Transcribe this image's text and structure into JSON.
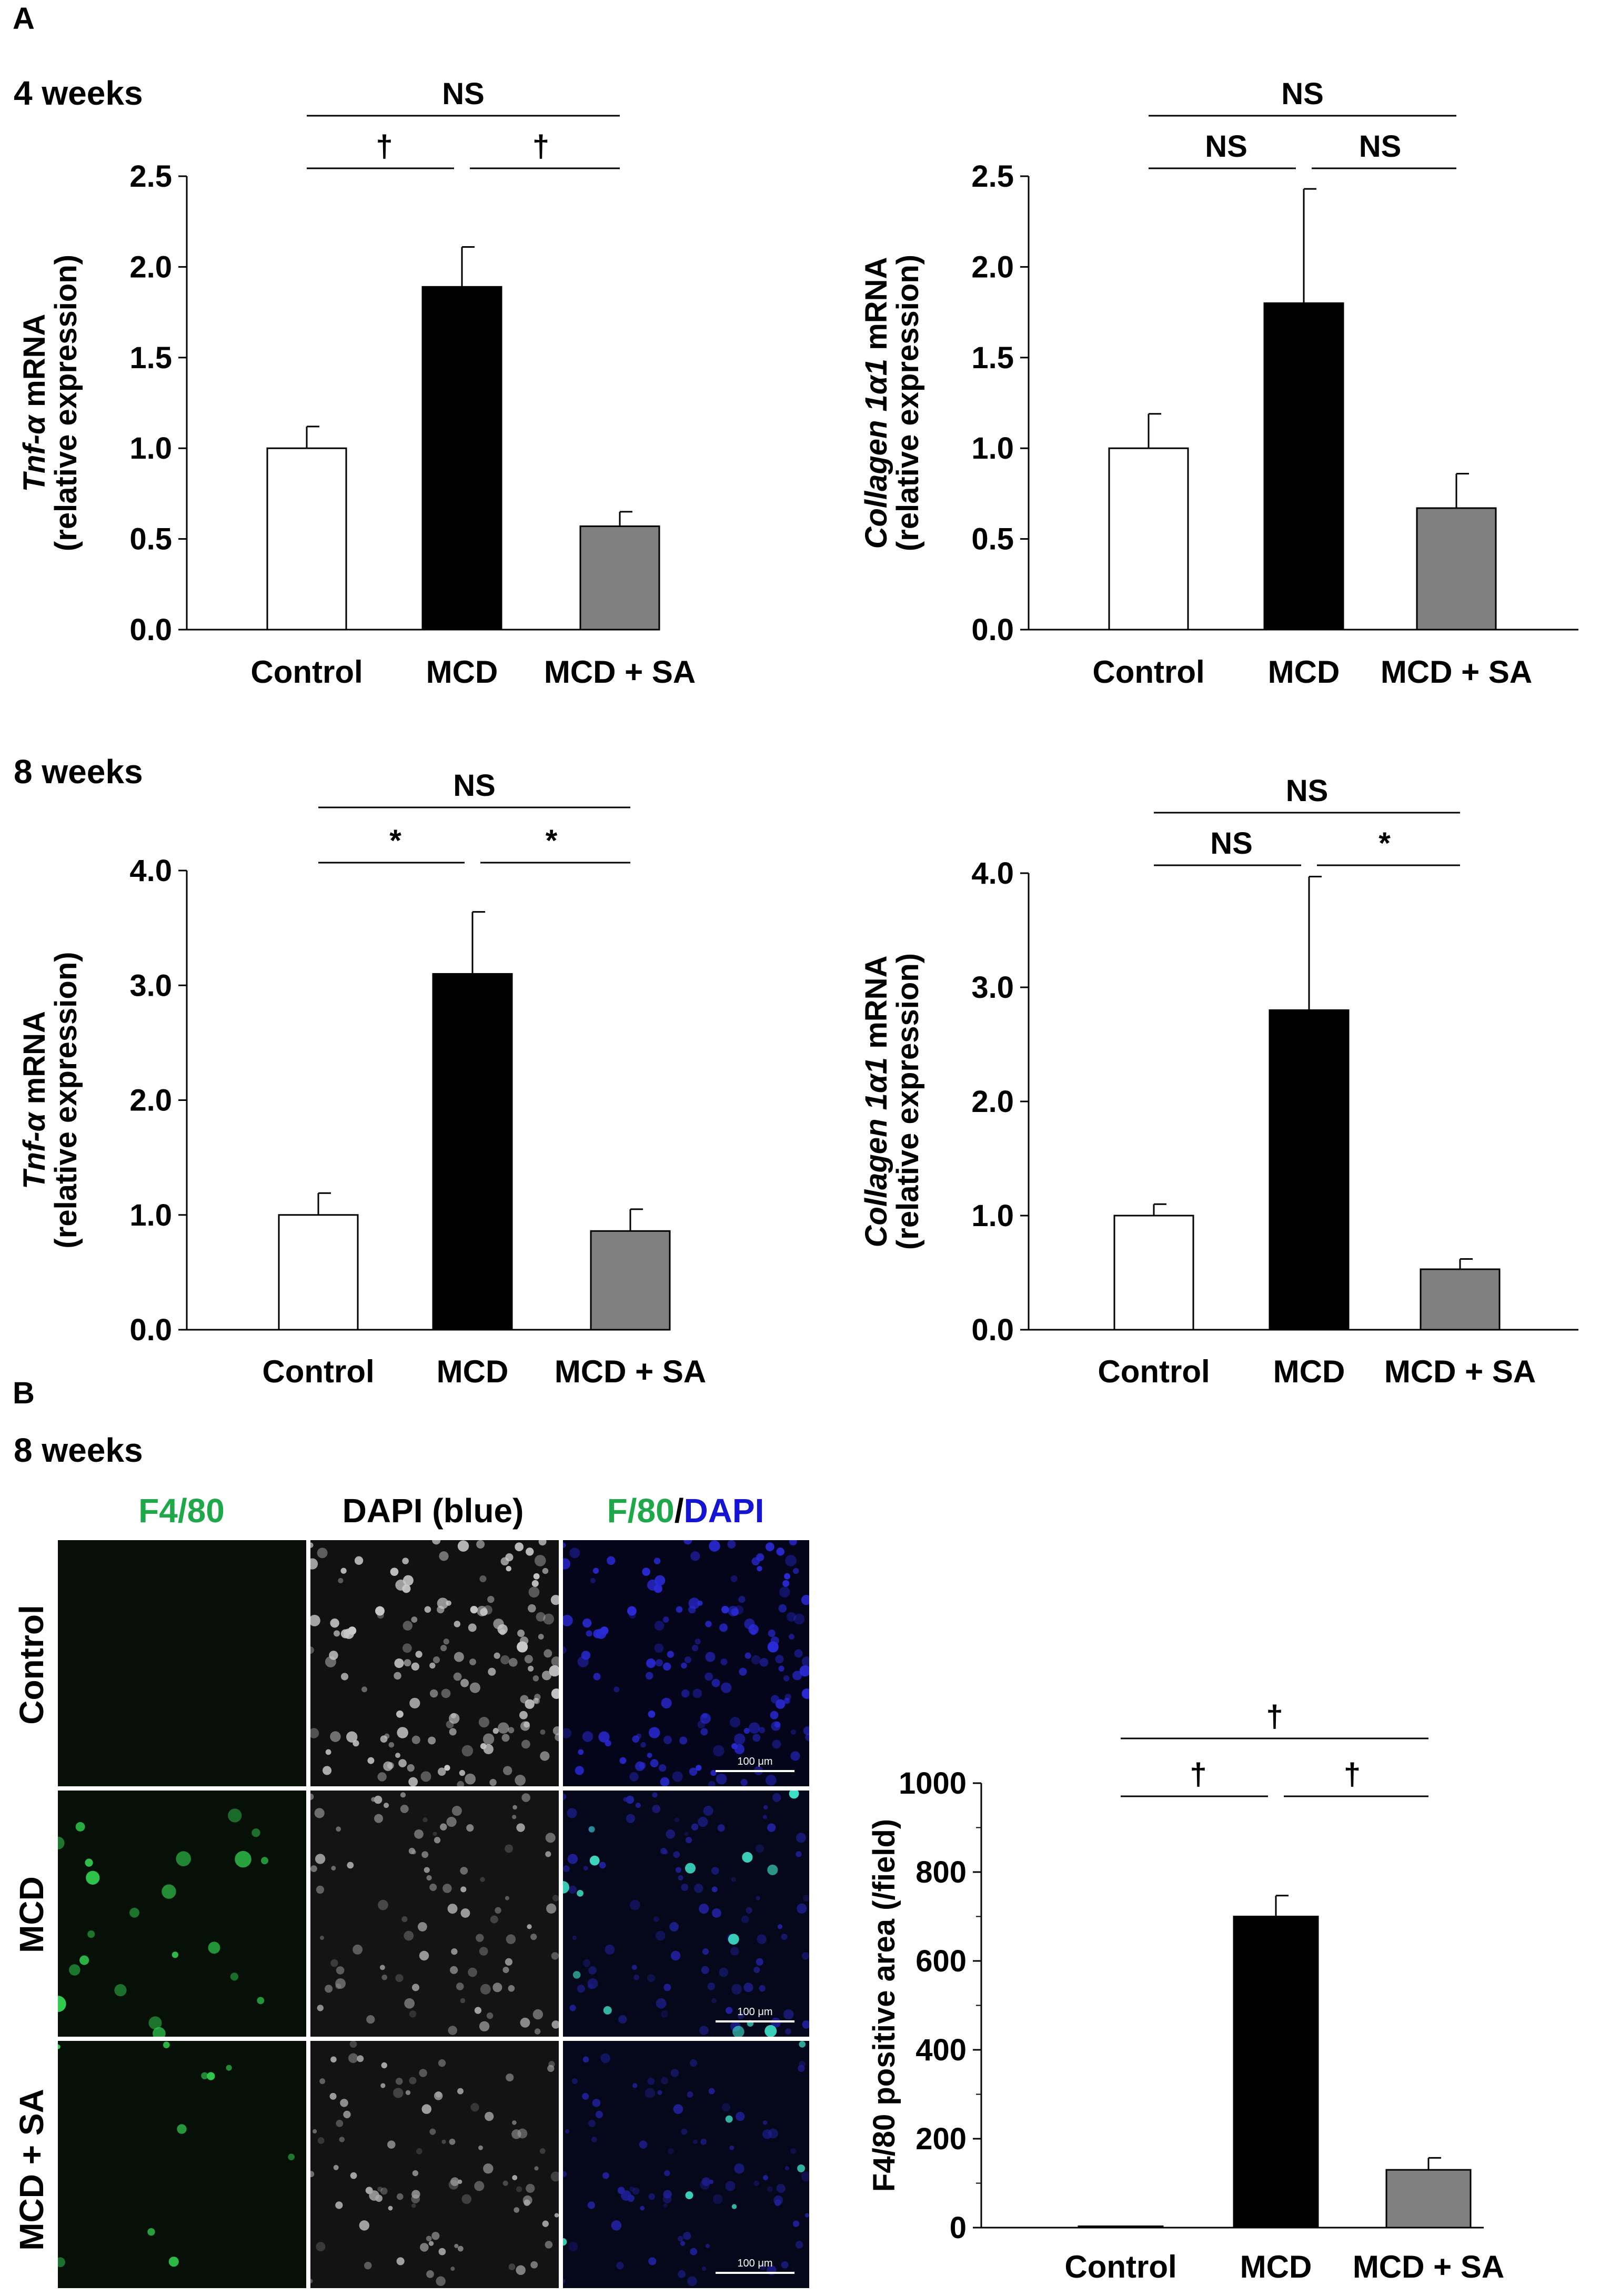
{
  "panels": {
    "a": "A",
    "b": "B"
  },
  "weeks": {
    "w4": "4 weeks",
    "w8": "8 weeks",
    "b_w8": "8 weeks"
  },
  "colors": {
    "control": "#ffffff",
    "mcd": "#000000",
    "mcd_sa": "#808080",
    "green": "#1fa84a",
    "blue": "#1414d2"
  },
  "chart_data": [
    {
      "type": "bar",
      "id": "tnf_4w",
      "categories": [
        "Control",
        "MCD",
        "MCD + SA"
      ],
      "values": [
        1.0,
        1.89,
        0.57
      ],
      "errors": [
        0.12,
        0.22,
        0.08
      ],
      "ylabel_italic": "Tnf-α",
      "ylabel_rest": " mRNA",
      "ylabel_line2": "(relative expression)",
      "ylim": [
        0,
        2.5
      ],
      "ticks": [
        "0.0",
        "0.5",
        "1.0",
        "1.5",
        "2.0",
        "2.5"
      ],
      "sig": {
        "pair12": "†",
        "pair23": "†",
        "pair13": "NS"
      }
    },
    {
      "type": "bar",
      "id": "col_4w",
      "categories": [
        "Control",
        "MCD",
        "MCD + SA"
      ],
      "values": [
        1.0,
        1.8,
        0.67
      ],
      "errors": [
        0.19,
        0.63,
        0.19
      ],
      "ylabel_italic": "Collagen 1α1",
      "ylabel_rest": " mRNA",
      "ylabel_line2": "(relative expression)",
      "ylim": [
        0,
        2.5
      ],
      "ticks": [
        "0.0",
        "0.5",
        "1.0",
        "1.5",
        "2.0",
        "2.5"
      ],
      "sig": {
        "pair12": "NS",
        "pair23": "NS",
        "pair13": "NS"
      }
    },
    {
      "type": "bar",
      "id": "tnf_8w",
      "categories": [
        "Control",
        "MCD",
        "MCD + SA"
      ],
      "values": [
        1.0,
        3.1,
        0.86
      ],
      "errors": [
        0.19,
        0.54,
        0.19
      ],
      "ylabel_italic": "Tnf-α",
      "ylabel_rest": " mRNA",
      "ylabel_line2": "(relative expression)",
      "ylim": [
        0,
        4.0
      ],
      "ticks": [
        "0.0",
        "1.0",
        "2.0",
        "3.0",
        "4.0"
      ],
      "sig": {
        "pair12": "*",
        "pair23": "*",
        "pair13": "NS"
      }
    },
    {
      "type": "bar",
      "id": "col_8w",
      "categories": [
        "Control",
        "MCD",
        "MCD + SA"
      ],
      "values": [
        1.0,
        2.8,
        0.53
      ],
      "errors": [
        0.1,
        1.17,
        0.09
      ],
      "ylabel_italic": "Collagen 1α1",
      "ylabel_rest": " mRNA",
      "ylabel_line2": "(relative expression)",
      "ylim": [
        0,
        4.0
      ],
      "ticks": [
        "0.0",
        "1.0",
        "2.0",
        "3.0",
        "4.0"
      ],
      "sig": {
        "pair12": "NS",
        "pair23": "*",
        "pair13": "NS"
      }
    },
    {
      "type": "bar",
      "id": "f480_area",
      "categories": [
        "Control",
        "MCD",
        "MCD + SA"
      ],
      "values": [
        3,
        700,
        130
      ],
      "errors": [
        0,
        47,
        27
      ],
      "ylabel_italic": "",
      "ylabel_rest": "F4/80 positive area (/field)",
      "ylabel_line2": "",
      "ylim": [
        0,
        1000
      ],
      "ticks": [
        "0",
        "200",
        "400",
        "600",
        "800",
        "1000"
      ],
      "sig": {
        "pair12": "†",
        "pair23": "†",
        "pair13": "†"
      }
    }
  ],
  "micrographs": {
    "columns": {
      "f480": "F4/80",
      "dapi": "DAPI (blue)",
      "merge_a": "F/80",
      "merge_sep": "/",
      "merge_b": "DAPI"
    },
    "rows": [
      "Control",
      "MCD",
      "MCD + SA"
    ],
    "scale_label": "100 μm"
  }
}
